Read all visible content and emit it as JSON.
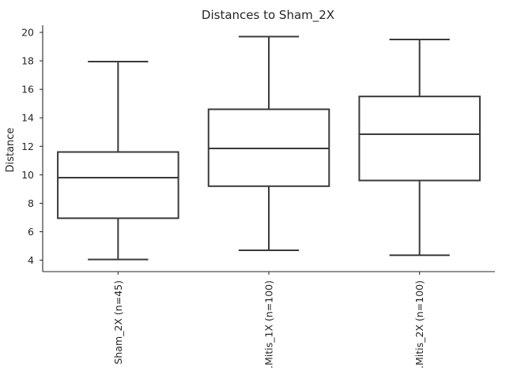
{
  "chart_data": {
    "type": "box",
    "title": "Distances to Sham_2X",
    "xlabel": "",
    "ylabel": "Distance",
    "ylim": [
      3.2,
      20.5
    ],
    "yticks": [
      4,
      6,
      8,
      10,
      12,
      14,
      16,
      18,
      20
    ],
    "categories": [
      "Sham_2X (n=45)",
      ".Mitis_1X (n=100)",
      ".Mitis_2X (n=100)"
    ],
    "boxes": [
      {
        "whislo": 4.05,
        "q1": 6.95,
        "med": 9.8,
        "q3": 11.6,
        "whishi": 17.95
      },
      {
        "whislo": 4.7,
        "q1": 9.2,
        "med": 11.85,
        "q3": 14.6,
        "whishi": 19.7
      },
      {
        "whislo": 4.35,
        "q1": 9.6,
        "med": 12.85,
        "q3": 15.5,
        "whishi": 19.5
      }
    ],
    "grid": false,
    "legend": "none"
  }
}
